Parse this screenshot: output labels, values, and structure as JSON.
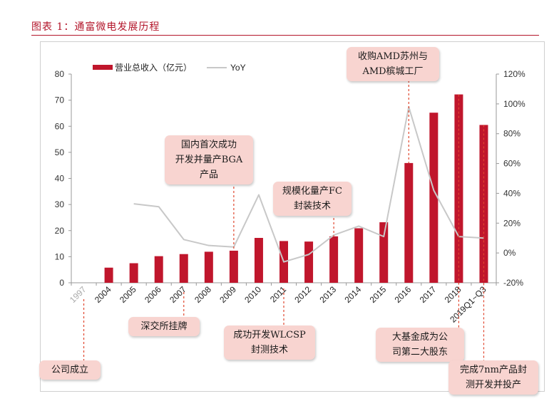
{
  "figure_title": "图表 1：通富微电发展历程",
  "colors": {
    "bar": "#c0162c",
    "line": "#c8c8c8",
    "title": "#b3152a",
    "callout_bg": "#f8d4d0",
    "callout_line": "#e0462e"
  },
  "chart_data": {
    "type": "bar",
    "categories": [
      "1997",
      "2004",
      "2005",
      "2006",
      "2007",
      "2008",
      "2009",
      "2010",
      "2011",
      "2012",
      "2013",
      "2014",
      "2015",
      "2016",
      "2017",
      "2018",
      "2019Q1~Q3"
    ],
    "series": [
      {
        "name": "营业总收入（亿元）",
        "type": "bar",
        "axis": "left",
        "values": [
          null,
          5.8,
          7.5,
          10.2,
          11.0,
          11.9,
          12.3,
          17.2,
          16.0,
          15.8,
          17.8,
          20.9,
          23.2,
          45.9,
          65.2,
          72.2,
          60.5
        ]
      },
      {
        "name": "YoY",
        "type": "line",
        "axis": "right",
        "values": [
          null,
          null,
          33,
          31,
          9,
          5,
          4,
          39,
          -6,
          -1,
          12,
          18,
          11,
          98,
          42,
          11,
          10
        ]
      }
    ],
    "y_left": {
      "min": 0,
      "max": 80,
      "ticks": [
        "0",
        "10",
        "20",
        "30",
        "40",
        "50",
        "60",
        "70",
        "80"
      ]
    },
    "y_right": {
      "min": -20,
      "max": 120,
      "ticks": [
        "-20%",
        "0%",
        "20%",
        "40%",
        "60%",
        "80%",
        "100%",
        "120%"
      ]
    },
    "legend_position": "top-left",
    "grid": false
  },
  "annotations": [
    {
      "text": "公司成立",
      "year": "1997"
    },
    {
      "text": "深交所挂牌",
      "year": "2007"
    },
    {
      "text": "国内首次成功\n开发并量产BGA\n产品",
      "year": "2009"
    },
    {
      "text": "成功开发WLCSP\n封测技术",
      "year": "2011"
    },
    {
      "text": "规模化量产FC\n封装技术",
      "year": "2013"
    },
    {
      "text": "收购AMD苏州与\nAMD槟城工厂",
      "year": "2016"
    },
    {
      "text": "大基金成为公\n司第二大股东",
      "year": "2018"
    },
    {
      "text": "完成7nm产品封\n测开发并投产",
      "year": "2019Q1~Q3"
    }
  ]
}
